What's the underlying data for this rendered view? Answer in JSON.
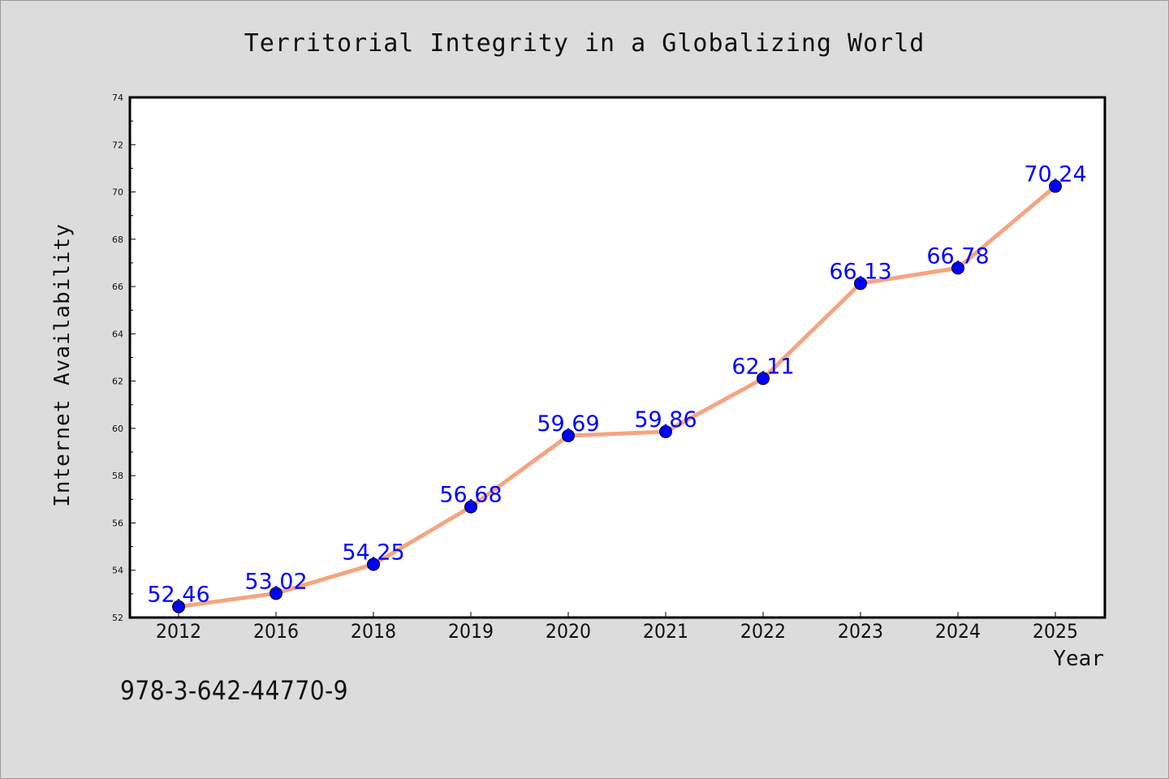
{
  "chart_data": {
    "type": "line",
    "title": "Territorial Integrity in a Globalizing World",
    "xlabel": "Year",
    "ylabel": "Internet Availability",
    "categories": [
      "2012",
      "2016",
      "2018",
      "2019",
      "2020",
      "2021",
      "2022",
      "2023",
      "2024",
      "2025"
    ],
    "values": [
      52.46,
      53.02,
      54.25,
      56.68,
      59.69,
      59.86,
      62.11,
      66.13,
      66.78,
      70.24
    ],
    "data_labels": [
      "52.46",
      "53.02",
      "54.25",
      "56.68",
      "59.69",
      "59.86",
      "62.11",
      "66.13",
      "66.78",
      "70.24"
    ],
    "ylim": [
      52,
      74
    ],
    "yticks": [
      52,
      54,
      56,
      58,
      60,
      62,
      64,
      66,
      68,
      70,
      72,
      74
    ],
    "grid": false,
    "line_color": "#f4a582",
    "marker_color": "#0000ff",
    "label_color": "#0000ff"
  },
  "footer": {
    "isbn": "978-3-642-44770-9"
  }
}
